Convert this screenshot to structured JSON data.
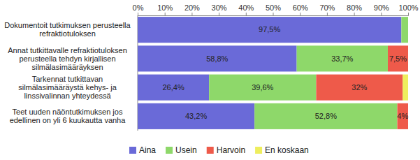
{
  "chart_data": {
    "type": "bar",
    "orientation": "horizontal",
    "stacked": true,
    "grid": false,
    "data_labels": true,
    "legend": "bottom",
    "categories": [
      "Dokumentoit tutkimuksen perusteella refraktiotuloksen",
      "Annat tutkittavalle refraktiotuloksen perusteella tehdyn kirjallisen silmälasimääräyksen",
      "Tarkennat tutkittavan silmälasimääräystä kehys- ja linssivalinnan yhteydessä",
      "Teet uuden näöntutkimuksen jos edellinen on yli 6 kuukautta vanha"
    ],
    "series": [
      {
        "name": "Aina",
        "color": "#6a6ad8",
        "values": [
          97.5,
          58.8,
          26.4,
          43.2
        ],
        "value_labels": [
          "97,5%",
          "58,8%",
          "26,4%",
          "43,2%"
        ]
      },
      {
        "name": "Usein",
        "color": "#8ed86a",
        "values": [
          2.5,
          33.7,
          39.6,
          52.8
        ],
        "value_labels": [
          null,
          "33,7%",
          "39,6%",
          "52,8%"
        ]
      },
      {
        "name": "Harvoin",
        "color": "#ee5a4a",
        "values": [
          0,
          7.5,
          32,
          4
        ],
        "value_labels": [
          null,
          "7,5%",
          "32%",
          "4%"
        ]
      },
      {
        "name": "En koskaan",
        "color": "#eeee5e",
        "values": [
          0,
          0,
          2,
          0
        ],
        "value_labels": [
          null,
          null,
          null,
          null
        ]
      }
    ],
    "xlim": [
      0,
      100
    ],
    "xticks": [
      {
        "value": 0,
        "label": "0%"
      },
      {
        "value": 10,
        "label": "10%"
      },
      {
        "value": 20,
        "label": "20%"
      },
      {
        "value": 30,
        "label": "30%"
      },
      {
        "value": 40,
        "label": "40%"
      },
      {
        "value": 50,
        "label": "50%"
      },
      {
        "value": 60,
        "label": "60%"
      },
      {
        "value": 70,
        "label": "70%"
      },
      {
        "value": 80,
        "label": "80%"
      },
      {
        "value": 90,
        "label": "90%"
      },
      {
        "value": 100,
        "label": "100%"
      }
    ]
  }
}
